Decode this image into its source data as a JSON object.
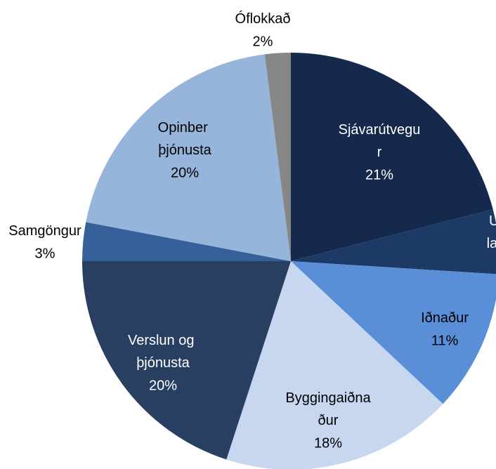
{
  "chart_data": {
    "type": "pie",
    "categories": [
      "Sjávarútvegur",
      "U lan",
      "Iðnaður",
      "Byggingaiðnaður",
      "Verslun og þjónusta",
      "Samgöngur",
      "Opinber þjónusta",
      "Óflokkað"
    ],
    "values": [
      21,
      5,
      11,
      18,
      20,
      3,
      20,
      2
    ],
    "value_labels": [
      "21%",
      null,
      "11%",
      "18%",
      "20%",
      "3%",
      "20%",
      "2%"
    ],
    "colors": [
      "#14294b",
      "#1d3a66",
      "#5a8fd8",
      "#c6d7ef",
      "#283f62",
      "#35609a",
      "#97b4da",
      "#878787"
    ]
  }
}
